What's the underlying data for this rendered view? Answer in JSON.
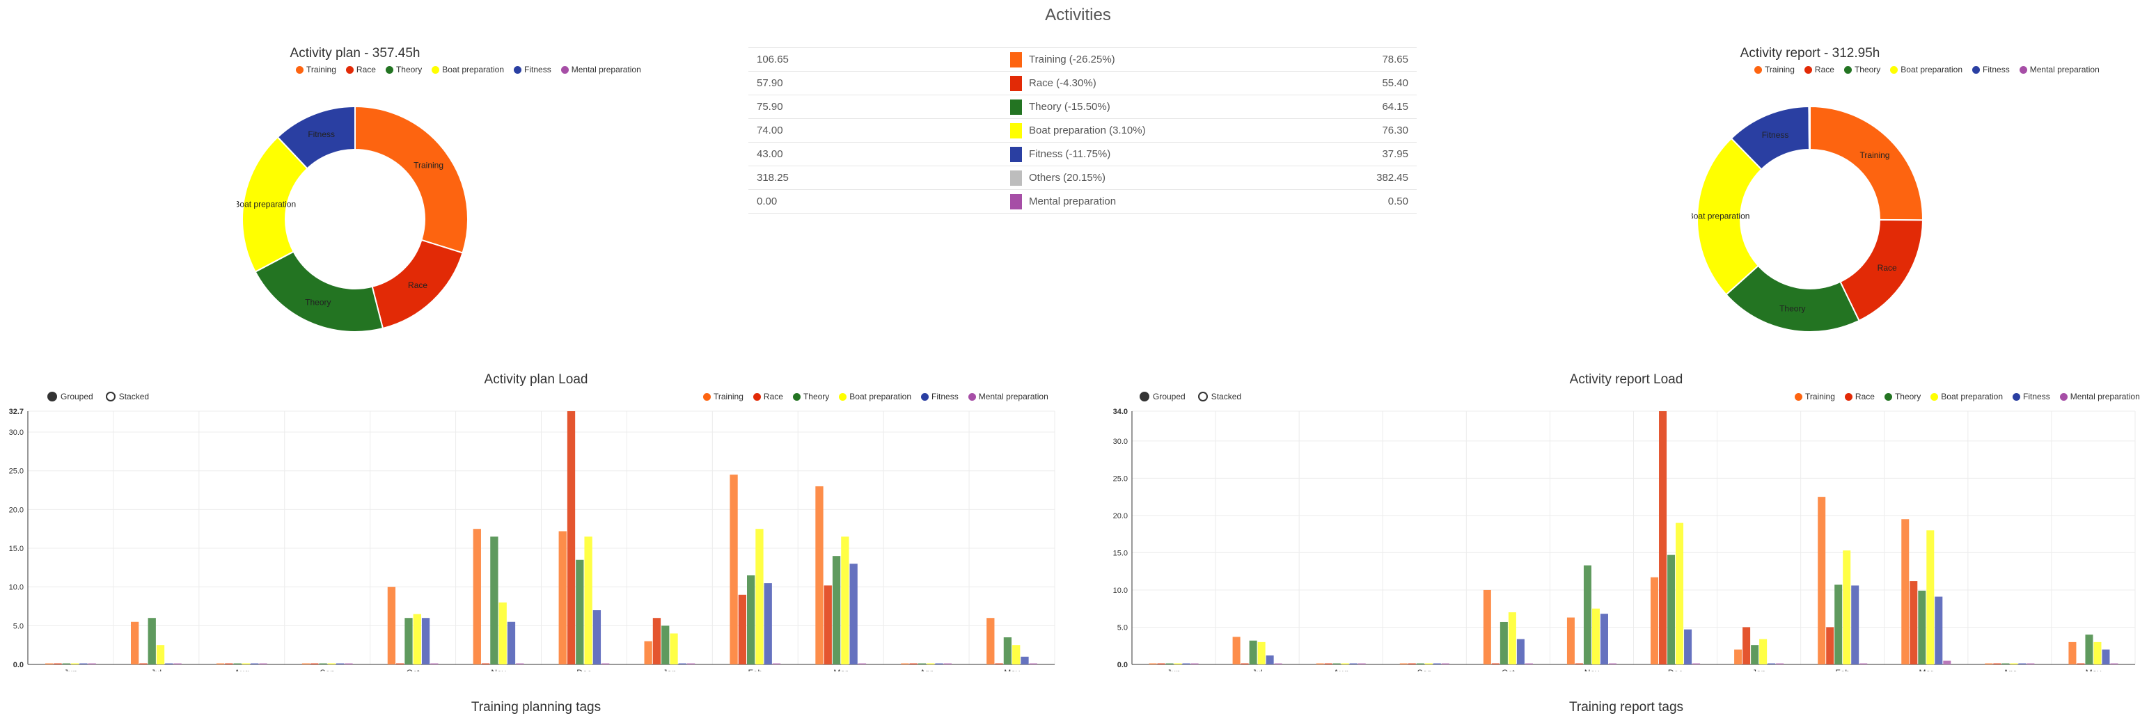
{
  "page": {
    "title": "Activities"
  },
  "colors": {
    "Training": "#fd6410",
    "Race": "#e22a06",
    "Theory": "#237422",
    "Boat preparation": "#ffff00",
    "Fitness": "#2a3fa2",
    "Others": "#bdbdbd",
    "Mental preparation": "#a64ea6"
  },
  "summary": {
    "rows": [
      {
        "left": "106.65",
        "label": "Training (-26.25%)",
        "right": "78.65",
        "color_key": "Training"
      },
      {
        "left": "57.90",
        "label": "Race (-4.30%)",
        "right": "55.40",
        "color_key": "Race"
      },
      {
        "left": "75.90",
        "label": "Theory (-15.50%)",
        "right": "64.15",
        "color_key": "Theory"
      },
      {
        "left": "74.00",
        "label": "Boat preparation (3.10%)",
        "right": "76.30",
        "color_key": "Boat preparation"
      },
      {
        "left": "43.00",
        "label": "Fitness (-11.75%)",
        "right": "37.95",
        "color_key": "Fitness"
      },
      {
        "left": "318.25",
        "label": "Others (20.15%)",
        "right": "382.45",
        "color_key": "Others"
      },
      {
        "left": "0.00",
        "label": "Mental preparation",
        "right": "0.50",
        "color_key": "Mental preparation"
      }
    ]
  },
  "load_controls": {
    "grouped_label": "Grouped",
    "stacked_label": "Stacked",
    "selected": "grouped"
  },
  "chart_data": [
    {
      "type": "pie",
      "title": "Activity plan - 357.45h",
      "legend": [
        "Training",
        "Race",
        "Theory",
        "Boat preparation",
        "Fitness",
        "Mental preparation"
      ],
      "labels": [
        "Training",
        "Race",
        "Theory",
        "Boat preparation",
        "Fitness",
        "Mental preparation"
      ],
      "values": [
        106.65,
        57.9,
        75.9,
        74.0,
        43.0,
        0.0
      ]
    },
    {
      "type": "pie",
      "title": "Activity report - 312.95h",
      "legend": [
        "Training",
        "Race",
        "Theory",
        "Boat preparation",
        "Fitness",
        "Mental preparation"
      ],
      "labels": [
        "Training",
        "Race",
        "Theory",
        "Boat preparation",
        "Fitness",
        "Mental preparation"
      ],
      "values": [
        78.65,
        55.4,
        64.15,
        76.3,
        37.95,
        0.5
      ]
    },
    {
      "type": "bar",
      "title": "Activity plan Load",
      "xlabel": "Training planning tags",
      "ylim": [
        0,
        32.7
      ],
      "yticks": [
        "0.0",
        "5.0",
        "10.0",
        "15.0",
        "20.0",
        "25.0",
        "30.0",
        "32.7"
      ],
      "ytick_values": [
        0,
        5,
        10,
        15,
        20,
        25,
        30,
        32.7
      ],
      "categories": [
        "Jun",
        "Jul",
        "Aug",
        "Sep",
        "Oct",
        "Nov",
        "Dec",
        "Jan",
        "Feb",
        "Mar",
        "Apr",
        "May"
      ],
      "series": [
        {
          "name": "Training",
          "values": [
            0,
            5.5,
            0,
            0,
            10.0,
            17.5,
            17.2,
            3.0,
            24.5,
            23.0,
            0,
            6.0
          ]
        },
        {
          "name": "Race",
          "values": [
            0,
            0,
            0,
            0,
            0,
            0,
            32.7,
            6.0,
            9.0,
            10.2,
            0,
            0
          ]
        },
        {
          "name": "Theory",
          "values": [
            0,
            6.0,
            0,
            0,
            6.0,
            16.5,
            13.5,
            5.0,
            11.5,
            14.0,
            0,
            3.5
          ]
        },
        {
          "name": "Boat preparation",
          "values": [
            0,
            2.5,
            0,
            0,
            6.5,
            8.0,
            16.5,
            4.0,
            17.5,
            16.5,
            0,
            2.5
          ]
        },
        {
          "name": "Fitness",
          "values": [
            0,
            0,
            0,
            0,
            6.0,
            5.5,
            7.0,
            0,
            10.5,
            13.0,
            0,
            1.0
          ]
        },
        {
          "name": "Mental preparation",
          "values": [
            0,
            0,
            0,
            0,
            0,
            0,
            0,
            0,
            0,
            0,
            0,
            0
          ]
        }
      ]
    },
    {
      "type": "bar",
      "title": "Activity report Load",
      "xlabel": "Training report tags",
      "ylim": [
        0,
        34.0
      ],
      "yticks": [
        "0.0",
        "5.0",
        "10.0",
        "15.0",
        "20.0",
        "25.0",
        "30.0",
        "34.0"
      ],
      "ytick_values": [
        0,
        5,
        10,
        15,
        20,
        25,
        30,
        34
      ],
      "categories": [
        "Jun",
        "Jul",
        "Aug",
        "Sep",
        "Oct",
        "Nov",
        "Dec",
        "Jan",
        "Feb",
        "Mar",
        "Apr",
        "May"
      ],
      "series": [
        {
          "name": "Training",
          "values": [
            0,
            3.7,
            0,
            0,
            10.0,
            6.3,
            11.7,
            2.0,
            22.5,
            19.5,
            0,
            3.0
          ]
        },
        {
          "name": "Race",
          "values": [
            0,
            0,
            0,
            0,
            0,
            0,
            34.0,
            5.0,
            5.0,
            11.2,
            0,
            0
          ]
        },
        {
          "name": "Theory",
          "values": [
            0,
            3.2,
            0,
            0,
            5.7,
            13.3,
            14.7,
            2.6,
            10.7,
            9.9,
            0,
            4.0
          ]
        },
        {
          "name": "Boat preparation",
          "values": [
            0,
            3.0,
            0,
            0,
            7.0,
            7.5,
            19.0,
            3.4,
            15.3,
            18.0,
            0,
            3.0
          ]
        },
        {
          "name": "Fitness",
          "values": [
            0,
            1.2,
            0,
            0,
            3.4,
            6.8,
            4.7,
            0,
            10.6,
            9.1,
            0,
            2.0
          ]
        },
        {
          "name": "Mental preparation",
          "values": [
            0,
            0,
            0,
            0,
            0,
            0,
            0,
            0,
            0,
            0.5,
            0,
            0
          ]
        }
      ]
    }
  ]
}
